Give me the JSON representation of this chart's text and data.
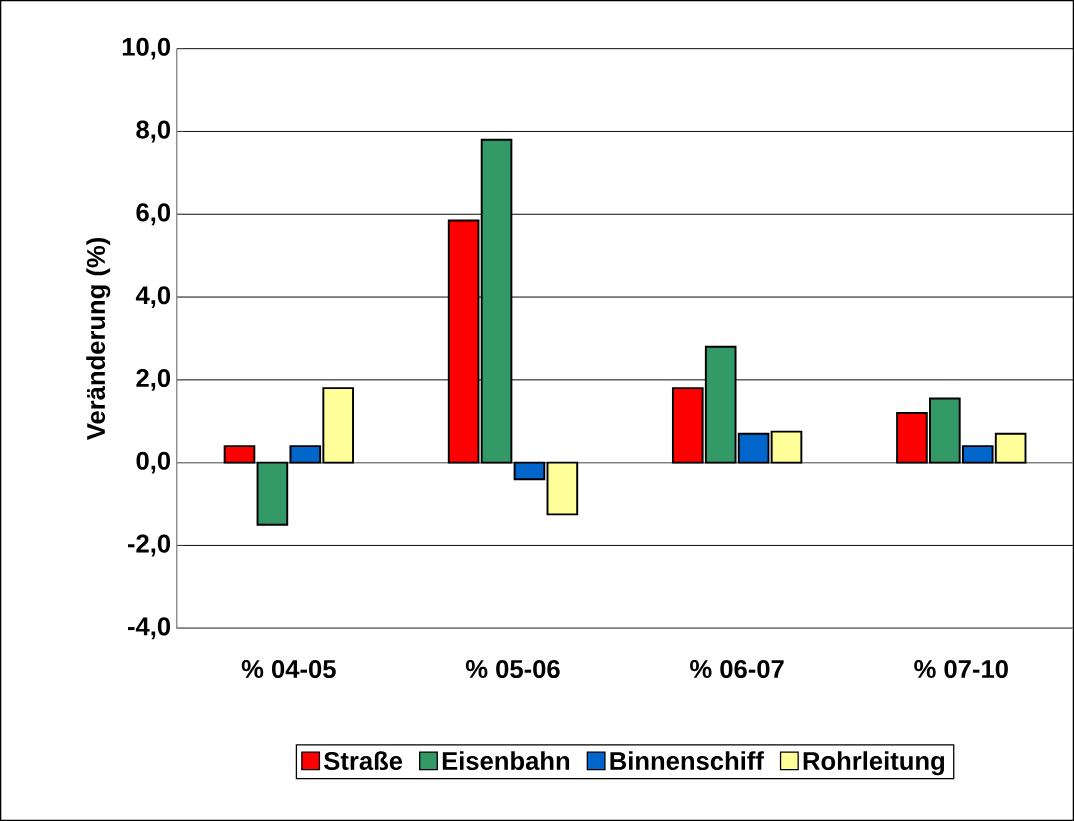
{
  "chart_data": {
    "type": "bar",
    "ylabel": "Veränderung (%)",
    "categories": [
      "% 04-05",
      "% 05-06",
      "% 06-07",
      "% 07-10"
    ],
    "series": [
      {
        "name": "Straße",
        "color": "#ff0000",
        "values": [
          0.4,
          5.85,
          1.8,
          1.2
        ]
      },
      {
        "name": "Eisenbahn",
        "color": "#339966",
        "values": [
          -1.5,
          7.8,
          2.8,
          1.55
        ]
      },
      {
        "name": "Binnenschiff",
        "color": "#0066cc",
        "values": [
          0.4,
          -0.4,
          0.7,
          0.4
        ]
      },
      {
        "name": "Rohrleitung",
        "color": "#ffff99",
        "values": [
          1.8,
          -1.25,
          0.75,
          0.7
        ]
      }
    ],
    "ylim": [
      -4,
      10
    ],
    "yticks": [
      {
        "value": -4,
        "label": "-4,0"
      },
      {
        "value": -2,
        "label": "-2,0"
      },
      {
        "value": 0,
        "label": "0,0"
      },
      {
        "value": 2,
        "label": "2,0"
      },
      {
        "value": 4,
        "label": "4,0"
      },
      {
        "value": 6,
        "label": "6,0"
      },
      {
        "value": 8,
        "label": "8,0"
      },
      {
        "value": 10,
        "label": "10,0"
      }
    ],
    "grid": "y",
    "legend": "bottom"
  }
}
